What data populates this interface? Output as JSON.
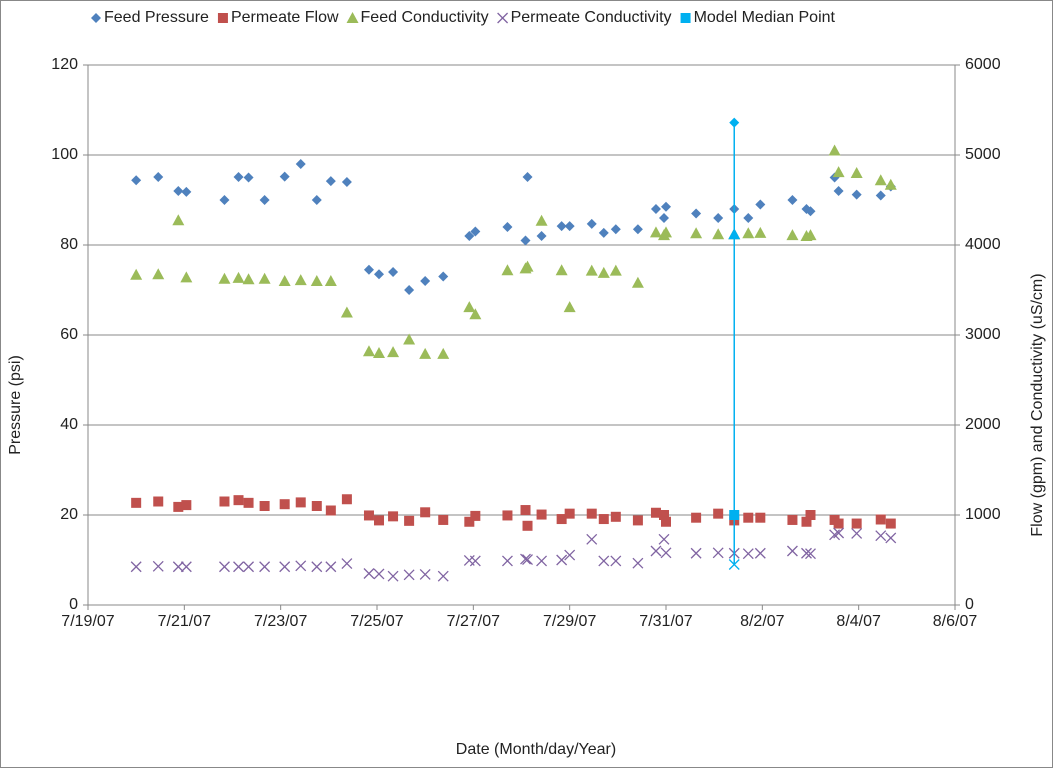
{
  "chart_data": {
    "type": "scatter",
    "x_label": "Date (Month/day/Year)",
    "y_label": "Pressure (psi)",
    "y2_label": "Flow (gpm) and Conductivity (uS/cm)",
    "xlim": [
      "2007-07-19T00:00",
      "2007-08-06T00:00"
    ],
    "xticks": [
      {
        "value": "2007-07-19T00:00",
        "label": "7/19/07"
      },
      {
        "value": "2007-07-21T00:00",
        "label": "7/21/07"
      },
      {
        "value": "2007-07-23T00:00",
        "label": "7/23/07"
      },
      {
        "value": "2007-07-25T00:00",
        "label": "7/25/07"
      },
      {
        "value": "2007-07-27T00:00",
        "label": "7/27/07"
      },
      {
        "value": "2007-07-29T00:00",
        "label": "7/29/07"
      },
      {
        "value": "2007-07-31T00:00",
        "label": "7/31/07"
      },
      {
        "value": "2007-08-02T00:00",
        "label": "8/2/07"
      },
      {
        "value": "2007-08-04T00:00",
        "label": "8/4/07"
      },
      {
        "value": "2007-08-06T00:00",
        "label": "8/6/07"
      }
    ],
    "ylim": [
      0,
      120
    ],
    "yticks": [
      0,
      20,
      40,
      60,
      80,
      100,
      120
    ],
    "y2lim": [
      0,
      6000
    ],
    "y2ticks": [
      0,
      1000,
      2000,
      3000,
      4000,
      5000,
      6000
    ],
    "grid": true,
    "x": [
      "2007-07-20T00:00",
      "2007-07-20T11:00",
      "2007-07-20T21:00",
      "2007-07-21T01:00",
      "2007-07-21T20:00",
      "2007-07-22T03:00",
      "2007-07-22T08:00",
      "2007-07-22T16:00",
      "2007-07-23T02:00",
      "2007-07-23T10:00",
      "2007-07-23T18:00",
      "2007-07-24T01:00",
      "2007-07-24T09:00",
      "2007-07-24T20:00",
      "2007-07-25T01:00",
      "2007-07-25T08:00",
      "2007-07-25T16:00",
      "2007-07-26T00:00",
      "2007-07-26T09:00",
      "2007-07-26T22:00",
      "2007-07-27T01:00",
      "2007-07-27T17:00",
      "2007-07-28T02:00",
      "2007-07-28T03:00",
      "2007-07-28T10:00",
      "2007-07-28T20:00",
      "2007-07-29T00:00",
      "2007-07-29T11:00",
      "2007-07-29T17:00",
      "2007-07-29T23:00",
      "2007-07-30T10:00",
      "2007-07-30T19:00",
      "2007-07-30T23:00",
      "2007-07-31T00:00",
      "2007-07-31T15:00",
      "2007-08-01T02:00",
      "2007-08-01T10:00",
      "2007-08-01T17:00",
      "2007-08-01T23:00",
      "2007-08-02T15:00",
      "2007-08-02T22:00",
      "2007-08-03T00:00",
      "2007-08-03T12:00",
      "2007-08-03T14:00",
      "2007-08-03T23:00",
      "2007-08-04T11:00",
      "2007-08-04T16:00"
    ],
    "series": [
      {
        "name": "Feed Pressure",
        "color": "#4f81bd",
        "marker": "diamond",
        "axis": "y",
        "values": [
          94.4,
          95.1,
          92,
          91.8,
          90,
          95.1,
          95,
          90,
          95.2,
          98,
          90,
          94.2,
          94,
          74.5,
          73.5,
          74,
          70,
          72,
          73,
          82,
          83,
          84,
          81,
          95.1,
          82,
          84.2,
          84.2,
          84.7,
          82.7,
          83.5,
          83.5,
          88,
          86,
          88.5,
          87,
          86,
          88,
          86,
          89,
          90,
          88,
          87.5,
          95,
          92,
          91.2,
          91,
          93
        ]
      },
      {
        "name": "Permeate Flow",
        "color": "#c0504d",
        "marker": "square",
        "axis": "y2",
        "values": [
          1135,
          1150,
          1090,
          1110,
          1150,
          1165,
          1135,
          1100,
          1120,
          1140,
          1100,
          1050,
          1175,
          995,
          940,
          985,
          935,
          1030,
          945,
          925,
          990,
          995,
          1055,
          880,
          1005,
          955,
          1015,
          1015,
          955,
          980,
          940,
          1025,
          1000,
          925,
          970,
          1015,
          940,
          970,
          970,
          945,
          925,
          1000,
          945,
          905,
          905,
          950,
          905
        ]
      },
      {
        "name": "Feed Conductivity",
        "color": "#9bbb59",
        "marker": "triangle",
        "axis": "y2",
        "values": [
          3670,
          3675,
          4275,
          3640,
          3625,
          3635,
          3620,
          3625,
          3600,
          3610,
          3600,
          3600,
          3250,
          2820,
          2800,
          2810,
          2950,
          2790,
          2790,
          3310,
          3230,
          3720,
          3740,
          3760,
          4270,
          3720,
          3310,
          3715,
          3690,
          3715,
          3580,
          4140,
          4110,
          4140,
          4130,
          4120,
          4120,
          4130,
          4135,
          4110,
          4100,
          4110,
          5050,
          4810,
          4800,
          4720,
          4670
        ]
      },
      {
        "name": "Permeate Conductivity",
        "color": "#8064a2",
        "marker": "cross",
        "axis": "y2",
        "values": [
          425,
          430,
          425,
          425,
          425,
          425,
          425,
          425,
          425,
          435,
          425,
          425,
          460,
          350,
          345,
          320,
          335,
          340,
          320,
          495,
          490,
          490,
          510,
          505,
          490,
          500,
          555,
          730,
          490,
          490,
          465,
          600,
          730,
          580,
          575,
          580,
          575,
          570,
          575,
          600,
          575,
          570,
          780,
          800,
          795,
          770,
          745
        ]
      }
    ],
    "median": {
      "name": "Model Median Point",
      "color": "#00b0f0",
      "x": "2007-08-01T10:00",
      "pressure": 107.2,
      "flow": 1000,
      "feed_conductivity": 4120,
      "permeate_conductivity": 450
    }
  }
}
